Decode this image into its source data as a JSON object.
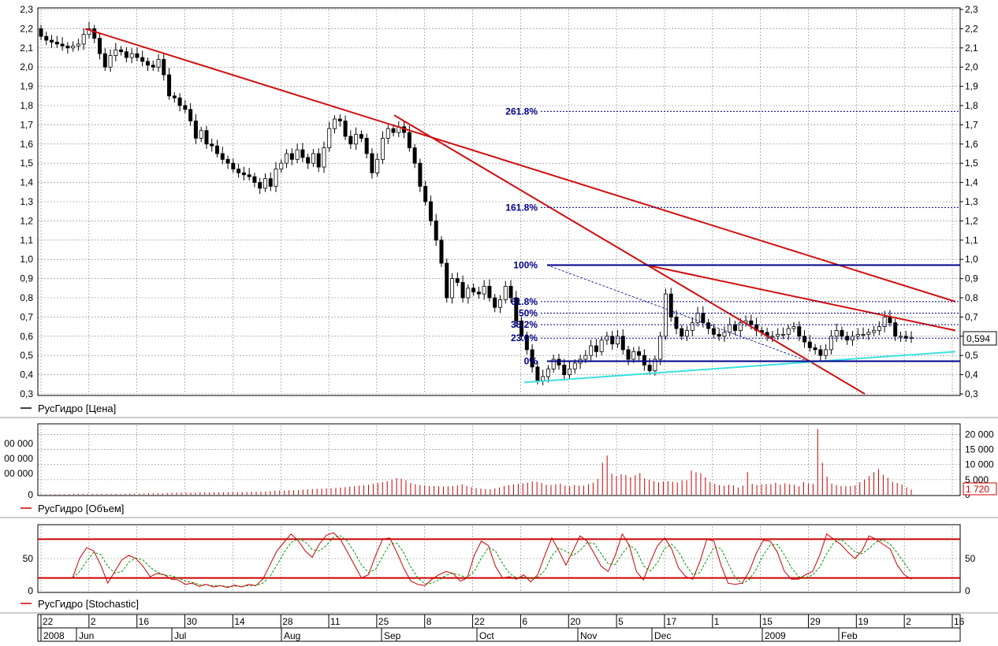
{
  "app": {
    "last_price_label": "0,594",
    "last_volume_label": "1 720"
  },
  "colors": {
    "candle_up": "#ffffff",
    "candle_down": "#000000",
    "trendline": "#d01010",
    "support_line": "#40e0e0",
    "fib_line": "#00008b",
    "volume_bar": "#cc0000",
    "stoch_k": "#cc0000",
    "stoch_d": "#009900",
    "stoch_band": "#cc0000",
    "grid": "#808080"
  },
  "panes": {
    "price_label": "РусГидро [Цена]",
    "volume_label": "РусГидро [Объем]",
    "stoch_label": "РусГидро [Stochastic]"
  },
  "chart_data": [
    {
      "type": "candlestick",
      "pane": "price",
      "ylim": [
        0.3,
        2.3
      ],
      "y_ticks": [
        "0,3",
        "0,4",
        "0,5",
        "0,6",
        "0,7",
        "0,8",
        "0,9",
        "1,0",
        "1,1",
        "1,2",
        "1,3",
        "1,4",
        "1,5",
        "1,6",
        "1,7",
        "1,8",
        "1,9",
        "2,0",
        "2,1",
        "2,2",
        "2,3"
      ],
      "grid": true,
      "legend": "bottom-left",
      "close": [
        2.16,
        2.14,
        2.13,
        2.12,
        2.11,
        2.1,
        2.11,
        2.12,
        2.17,
        2.2,
        2.15,
        2.07,
        2.0,
        2.06,
        2.09,
        2.08,
        2.05,
        2.07,
        2.05,
        2.03,
        2.01,
        2.0,
        2.04,
        1.96,
        1.85,
        1.84,
        1.8,
        1.78,
        1.72,
        1.63,
        1.67,
        1.6,
        1.59,
        1.55,
        1.52,
        1.5,
        1.47,
        1.45,
        1.44,
        1.43,
        1.4,
        1.37,
        1.42,
        1.38,
        1.47,
        1.5,
        1.55,
        1.52,
        1.57,
        1.53,
        1.5,
        1.55,
        1.48,
        1.58,
        1.68,
        1.73,
        1.72,
        1.64,
        1.6,
        1.65,
        1.63,
        1.55,
        1.45,
        1.52,
        1.63,
        1.68,
        1.66,
        1.69,
        1.66,
        1.58,
        1.5,
        1.38,
        1.3,
        1.2,
        1.1,
        0.98,
        0.8,
        0.9,
        0.88,
        0.8,
        0.85,
        0.83,
        0.82,
        0.86,
        0.8,
        0.75,
        0.79,
        0.86,
        0.8,
        0.68,
        0.6,
        0.53,
        0.44,
        0.37,
        0.39,
        0.43,
        0.48,
        0.45,
        0.4,
        0.43,
        0.46,
        0.48,
        0.5,
        0.55,
        0.52,
        0.58,
        0.6,
        0.56,
        0.6,
        0.53,
        0.48,
        0.52,
        0.5,
        0.45,
        0.42,
        0.48,
        0.6,
        0.82,
        0.7,
        0.64,
        0.6,
        0.63,
        0.67,
        0.72,
        0.67,
        0.64,
        0.61,
        0.6,
        0.62,
        0.66,
        0.63,
        0.67,
        0.68,
        0.66,
        0.63,
        0.62,
        0.6,
        0.6,
        0.61,
        0.61,
        0.64,
        0.65,
        0.6,
        0.57,
        0.54,
        0.53,
        0.5,
        0.53,
        0.6,
        0.63,
        0.6,
        0.58,
        0.6,
        0.61,
        0.61,
        0.62,
        0.63,
        0.65,
        0.7,
        0.67,
        0.6,
        0.6,
        0.59,
        0.594
      ],
      "open_first": 2.2
    },
    {
      "type": "line",
      "pane": "price",
      "series": [
        {
          "values": [
            [
              9,
              2.2
            ],
            [
              1163,
              0.78
            ]
          ]
        },
        {
          "values": [
            [
              67,
              1.75
            ],
            [
              258,
              0.3
            ]
          ]
        },
        {
          "values": [
            [
              116,
              0.97
            ],
            [
              1163,
              0.63
            ]
          ]
        },
        {
          "values": [
            [
              93,
              0.36
            ],
            [
              1163,
              0.52
            ]
          ]
        }
      ]
    },
    {
      "type": "fibonacci",
      "pane": "price",
      "levels": [
        {
          "label": "261.8%",
          "value": 1.77
        },
        {
          "label": "161.8%",
          "value": 1.27
        },
        {
          "label": "100%",
          "value": 0.97
        },
        {
          "label": "61.8%",
          "value": 0.78
        },
        {
          "label": "50%",
          "value": 0.72
        },
        {
          "label": "38.2%",
          "value": 0.66
        },
        {
          "label": "23.6%",
          "value": 0.59
        },
        {
          "label": "0%",
          "value": 0.47
        }
      ]
    },
    {
      "type": "bar",
      "pane": "volume",
      "ylim": [
        0,
        23000
      ],
      "y_ticks": [
        "0",
        "5 000",
        "10 000",
        "15 000",
        "20 000"
      ],
      "left_y_ticks": [
        "00 000",
        "00 000",
        "00 000",
        "0"
      ],
      "values": [
        200,
        200,
        200,
        200,
        200,
        200,
        200,
        300,
        300,
        300,
        300,
        300,
        300,
        300,
        300,
        300,
        300,
        300,
        400,
        400,
        400,
        400,
        400,
        500,
        500,
        500,
        500,
        600,
        600,
        700,
        700,
        700,
        700,
        700,
        800,
        800,
        800,
        800,
        800,
        800,
        800,
        900,
        900,
        900,
        900,
        1000,
        1000,
        1000,
        1100,
        1200,
        1300,
        1400,
        1400,
        1500,
        1500,
        1500,
        1700,
        1800,
        1900,
        2000,
        2000,
        2100,
        2200,
        2300,
        2400,
        2500,
        2700,
        2800,
        3000,
        3100,
        3300,
        3600,
        3900,
        4200,
        4500,
        5000,
        5500,
        5300,
        4800,
        3900,
        3500,
        3200,
        3100,
        2900,
        2900,
        2800,
        2700,
        2800,
        2900,
        3100,
        3400,
        2900,
        2500,
        2200,
        2000,
        1900,
        1800,
        2100,
        2400,
        2900,
        3200,
        3400,
        3600,
        3800,
        4000,
        4400,
        4300,
        3900,
        3300,
        3200,
        3500,
        3700,
        3000,
        2800,
        3200,
        3000,
        3000,
        3500,
        4000,
        5200,
        10600,
        13000,
        7000,
        6200,
        6800,
        6500,
        5800,
        6500,
        7200,
        5400,
        5000,
        4500,
        4100,
        4400,
        4500,
        4300,
        4100,
        4800,
        4800,
        8000,
        7500,
        7200,
        5800,
        4300,
        3600,
        3200,
        3000,
        3300,
        3100,
        2400,
        3000,
        7500,
        3600,
        3200,
        3400,
        3500,
        3500,
        4000,
        3300,
        3800,
        3500,
        3300,
        2800,
        4200,
        3700,
        3600,
        21800,
        10600,
        6000,
        3700,
        3200,
        2900,
        2800,
        2900,
        3100,
        4200,
        5000,
        6200,
        7500,
        8500,
        6600,
        5600,
        4300,
        3900,
        3400,
        2400,
        1720
      ],
      "last_value": 1720
    },
    {
      "type": "line",
      "pane": "stochastic",
      "ylim": [
        0,
        100
      ],
      "y_ticks": [
        "0",
        "50"
      ],
      "bands": [
        20,
        80
      ],
      "series": [
        {
          "name": "%K",
          "values": [
            20,
            50,
            67,
            62,
            40,
            12,
            30,
            48,
            55,
            50,
            38,
            22,
            27,
            25,
            18,
            17,
            10,
            12,
            7,
            10,
            6,
            8,
            5,
            9,
            6,
            10,
            8,
            18,
            40,
            62,
            75,
            88,
            78,
            62,
            52,
            72,
            86,
            90,
            80,
            60,
            40,
            20,
            25,
            55,
            80,
            82,
            60,
            35,
            15,
            10,
            8,
            18,
            25,
            30,
            27,
            15,
            20,
            55,
            77,
            70,
            38,
            20,
            22,
            18,
            25,
            14,
            25,
            55,
            82,
            62,
            40,
            62,
            85,
            77,
            58,
            38,
            30,
            55,
            88,
            70,
            30,
            17,
            45,
            70,
            82,
            65,
            35,
            22,
            18,
            45,
            80,
            77,
            40,
            12,
            10,
            12,
            30,
            58,
            78,
            77,
            60,
            30,
            18,
            18,
            25,
            30,
            55,
            88,
            80,
            72,
            60,
            50,
            62,
            85,
            80,
            72,
            65,
            40,
            25,
            18
          ]
        }
      ]
    }
  ],
  "x_axis": {
    "month_ticks": [
      "22",
      "2",
      "16",
      "30",
      "14",
      "28",
      "11",
      "25",
      "8",
      "22",
      "6",
      "20",
      "5",
      "17",
      "1",
      "15",
      "29",
      "19",
      "2",
      "16"
    ],
    "months": [
      "2008",
      "Jun",
      "Jul",
      "Aug",
      "Sep",
      "Oct",
      "Nov",
      "Dec",
      "2009",
      "Feb"
    ]
  }
}
